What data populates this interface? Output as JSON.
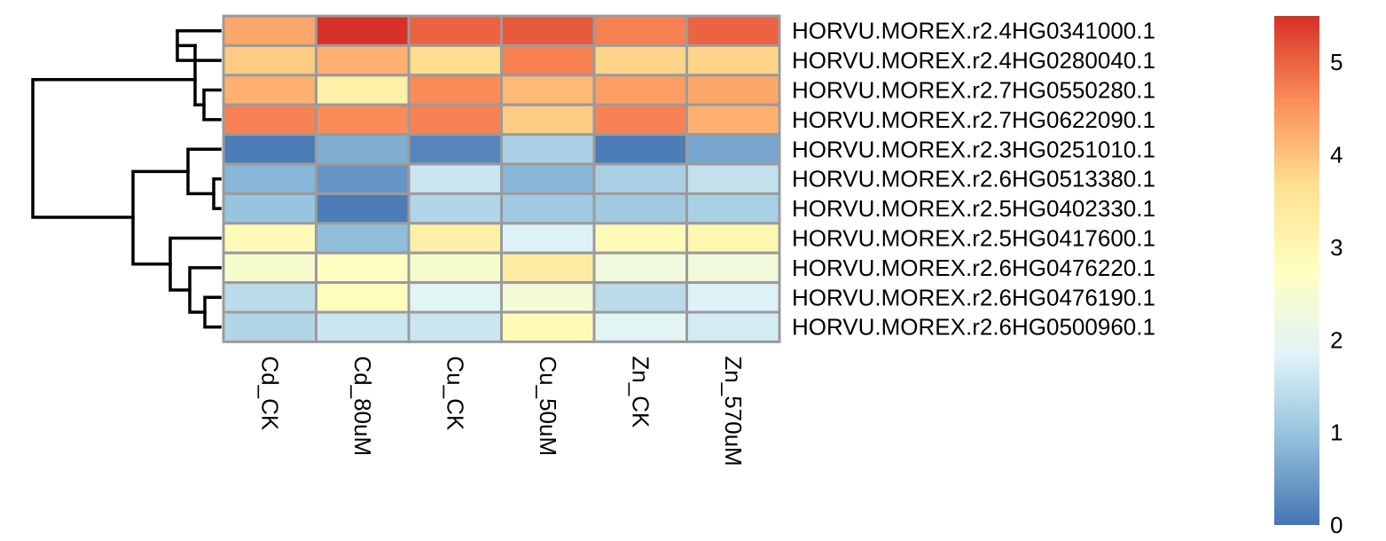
{
  "chart_data": {
    "type": "heatmap",
    "title": "",
    "xlabel": "",
    "ylabel": "",
    "rows": [
      "HORVU.MOREX.r2.4HG0341000.1",
      "HORVU.MOREX.r2.4HG0280040.1",
      "HORVU.MOREX.r2.7HG0550280.1",
      "HORVU.MOREX.r2.7HG0622090.1",
      "HORVU.MOREX.r2.3HG0251010.1",
      "HORVU.MOREX.r2.6HG0513380.1",
      "HORVU.MOREX.r2.5HG0402330.1",
      "HORVU.MOREX.r2.5HG0417600.1",
      "HORVU.MOREX.r2.6HG0476220.1",
      "HORVU.MOREX.r2.6HG0476190.1",
      "HORVU.MOREX.r2.6HG0500960.1"
    ],
    "columns": [
      "Cd_CK",
      "Cd_80uM",
      "Cu_CK",
      "Cu_50uM",
      "Zn_CK",
      "Zn_570uM"
    ],
    "values": [
      [
        4.3,
        5.5,
        5.0,
        5.1,
        4.7,
        5.0
      ],
      [
        3.9,
        4.2,
        3.7,
        4.7,
        3.8,
        3.8
      ],
      [
        4.2,
        3.2,
        4.6,
        4.1,
        4.4,
        4.3
      ],
      [
        4.7,
        4.6,
        4.7,
        3.9,
        4.7,
        4.2
      ],
      [
        0.1,
        0.7,
        0.2,
        1.2,
        0.1,
        0.6
      ],
      [
        0.8,
        0.4,
        1.6,
        0.8,
        1.2,
        1.5
      ],
      [
        1.0,
        0.1,
        1.3,
        1.1,
        1.1,
        1.2
      ],
      [
        2.9,
        0.9,
        3.2,
        1.8,
        2.9,
        3.0
      ],
      [
        2.5,
        2.7,
        2.5,
        3.3,
        2.3,
        2.3
      ],
      [
        1.4,
        2.8,
        1.9,
        2.4,
        1.4,
        1.8
      ],
      [
        1.3,
        1.6,
        1.6,
        2.9,
        1.9,
        1.7
      ]
    ],
    "color_scale": {
      "min": 0,
      "max": 5.5,
      "ticks": [
        0,
        1,
        2,
        3,
        4,
        5
      ],
      "colors": [
        "#4575b4",
        "#91bfdb",
        "#e0f3f8",
        "#ffffbf",
        "#fee090",
        "#fc8d59",
        "#d73027"
      ]
    },
    "row_dendrogram": true,
    "legend": "right",
    "cell_border_color": "#9b9b9b"
  }
}
